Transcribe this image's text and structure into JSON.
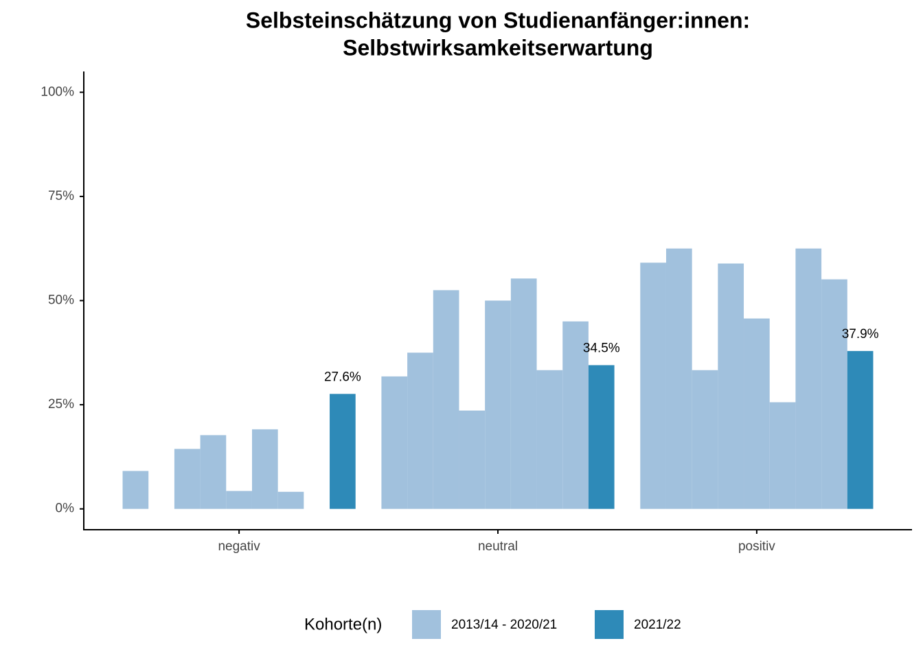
{
  "chart_data": {
    "type": "bar",
    "title": [
      "Selbsteinschätzung von Studienanfänger:innen:",
      "Selbstwirksamkeitserwartung"
    ],
    "categories": [
      "negativ",
      "neutral",
      "positiv"
    ],
    "legend_title": "Kohorte(n)",
    "series": [
      {
        "name": "2013/14 - 2020/21",
        "color": "#a1c1dd",
        "values": [
          [
            9.1,
            0,
            14.4,
            17.7,
            4.3,
            19.1,
            4.1,
            0
          ],
          [
            31.8,
            37.5,
            52.5,
            23.6,
            50.0,
            55.3,
            33.3,
            45.0
          ],
          [
            59.1,
            62.5,
            33.3,
            58.9,
            45.7,
            25.6,
            62.5,
            55.1
          ]
        ]
      },
      {
        "name": "2021/22",
        "color": "#2e8ab8",
        "values": [
          27.6,
          34.5,
          37.9
        ],
        "value_labels": [
          "27.6%",
          "34.5%",
          "37.9%"
        ]
      }
    ],
    "ylim": [
      -5,
      105
    ],
    "yticks": [
      {
        "value": 0,
        "label": "0%"
      },
      {
        "value": 25,
        "label": "25%"
      },
      {
        "value": 50,
        "label": "50%"
      },
      {
        "value": 75,
        "label": "75%"
      },
      {
        "value": 100,
        "label": "100%"
      }
    ],
    "grid": false,
    "legend_position": "bottom"
  }
}
